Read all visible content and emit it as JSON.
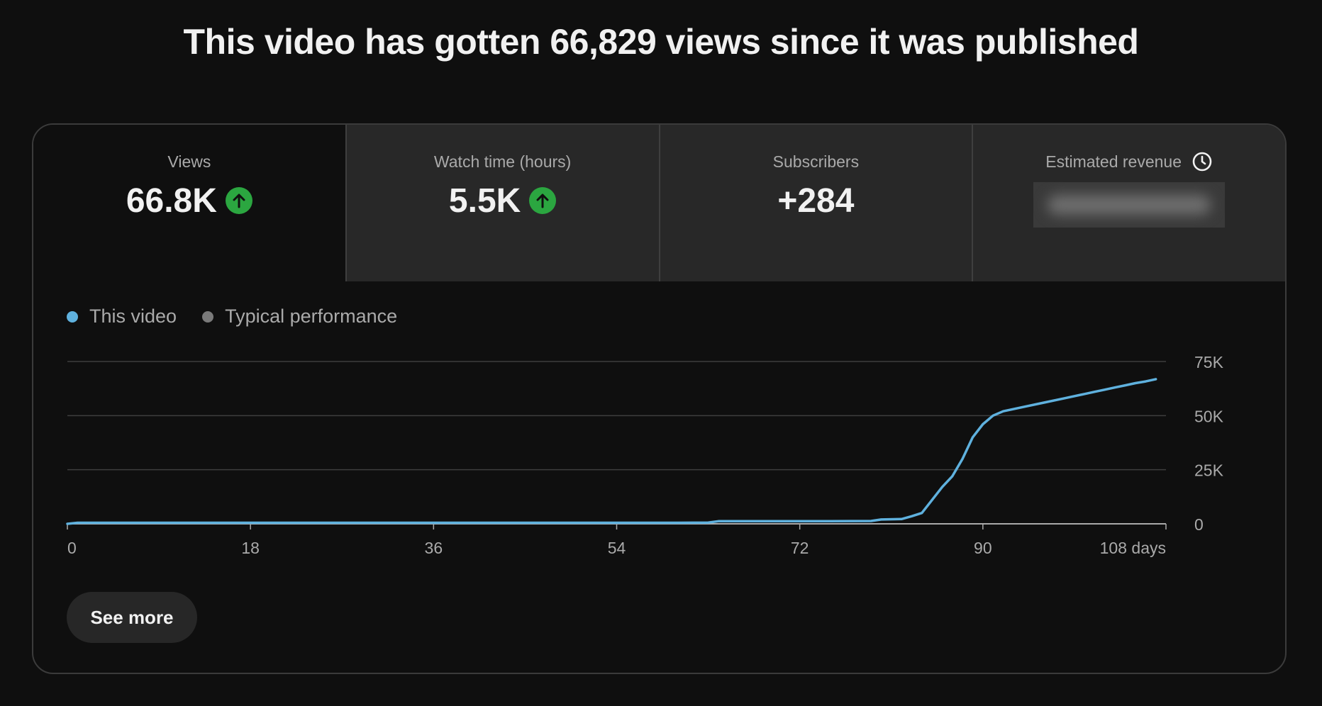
{
  "headline": "This video has gotten 66,829 views since it was published",
  "tabs": [
    {
      "label": "Views",
      "value": "66.8K",
      "trend": "up",
      "active": true
    },
    {
      "label": "Watch time (hours)",
      "value": "5.5K",
      "trend": "up",
      "active": false
    },
    {
      "label": "Subscribers",
      "value": "+284",
      "trend": "none",
      "active": false
    },
    {
      "label": "Estimated revenue",
      "value": "",
      "trend": "none",
      "active": false,
      "redacted": true
    }
  ],
  "legend": {
    "this_video": "This video",
    "typical": "Typical performance"
  },
  "colors": {
    "this_video": "#5fb1de",
    "typical": "#7a7a7a",
    "trend_up": "#2ba640"
  },
  "see_more_label": "See more",
  "chart_data": {
    "type": "line",
    "xlabel": "",
    "ylabel": "",
    "x_ticks": [
      "0",
      "18",
      "36",
      "54",
      "72",
      "90",
      "108 days"
    ],
    "x_tick_values": [
      0,
      18,
      36,
      54,
      72,
      90,
      108
    ],
    "y_ticks": [
      "0",
      "25K",
      "50K",
      "75K"
    ],
    "y_tick_values": [
      0,
      25000,
      50000,
      75000
    ],
    "xlim": [
      0,
      108
    ],
    "ylim": [
      0,
      75000
    ],
    "grid": true,
    "legend_position": "top-left",
    "series": [
      {
        "name": "This video",
        "x": [
          0,
          1,
          10,
          20,
          30,
          40,
          50,
          60,
          63,
          64,
          70,
          75,
          79,
          80,
          82,
          83,
          84,
          85,
          86,
          87,
          88,
          89,
          90,
          91,
          92,
          94,
          96,
          98,
          100,
          101,
          102,
          103,
          104,
          105,
          106,
          107
        ],
        "y": [
          0,
          500,
          500,
          500,
          500,
          500,
          500,
          500,
          600,
          1200,
          1200,
          1200,
          1300,
          2000,
          2200,
          3500,
          5000,
          11000,
          17000,
          22000,
          30000,
          40000,
          46000,
          50000,
          52000,
          54000,
          56000,
          58000,
          60000,
          61000,
          62000,
          63000,
          64000,
          65000,
          65800,
          66829
        ]
      }
    ]
  }
}
